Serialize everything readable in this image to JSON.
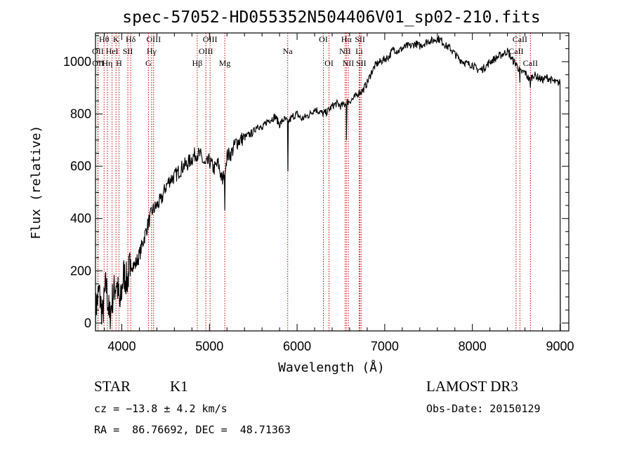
{
  "chart_data": {
    "type": "line",
    "title": "spec-57052-HD055352N504406V01_sp02-210.fits",
    "xlabel": "Wavelength (Å)",
    "ylabel": "Flux (relative)",
    "xlim": [
      3700,
      9100
    ],
    "ylim": [
      -30,
      1110
    ],
    "xticks": [
      4000,
      5000,
      6000,
      7000,
      8000,
      9000
    ],
    "yticks": [
      0,
      200,
      400,
      600,
      800,
      1000
    ],
    "grid": false,
    "series": [
      {
        "name": "flux",
        "x": [
          3700,
          3740,
          3780,
          3820,
          3860,
          3900,
          3940,
          3980,
          4020,
          4060,
          4100,
          4150,
          4200,
          4250,
          4300,
          4350,
          4400,
          4450,
          4500,
          4550,
          4600,
          4650,
          4700,
          4750,
          4800,
          4850,
          4900,
          4950,
          5000,
          5050,
          5100,
          5150,
          5200,
          5250,
          5300,
          5350,
          5400,
          5450,
          5500,
          5550,
          5600,
          5650,
          5700,
          5750,
          5800,
          5850,
          5900,
          5950,
          6000,
          6050,
          6100,
          6150,
          6200,
          6250,
          6300,
          6350,
          6400,
          6450,
          6500,
          6550,
          6600,
          6650,
          6700,
          6750,
          6800,
          6850,
          6900,
          6950,
          7000,
          7050,
          7100,
          7150,
          7200,
          7250,
          7300,
          7350,
          7400,
          7450,
          7500,
          7550,
          7600,
          7650,
          7700,
          7750,
          7800,
          7850,
          7900,
          7950,
          8000,
          8050,
          8100,
          8150,
          8200,
          8250,
          8300,
          8350,
          8400,
          8450,
          8500,
          8550,
          8600,
          8650,
          8700,
          8750,
          8800,
          8850,
          8900,
          8950,
          9000
        ],
        "y": [
          50,
          120,
          30,
          150,
          20,
          110,
          160,
          60,
          190,
          160,
          230,
          220,
          260,
          320,
          380,
          430,
          450,
          470,
          520,
          550,
          560,
          580,
          600,
          610,
          630,
          650,
          640,
          600,
          620,
          590,
          610,
          540,
          640,
          650,
          690,
          700,
          710,
          720,
          730,
          760,
          740,
          770,
          780,
          790,
          760,
          780,
          770,
          790,
          800,
          780,
          790,
          800,
          820,
          810,
          800,
          810,
          830,
          840,
          830,
          840,
          850,
          860,
          880,
          890,
          920,
          960,
          990,
          1000,
          1010,
          1020,
          1050,
          1040,
          1050,
          1060,
          1060,
          1070,
          1060,
          1070,
          1080,
          1080,
          1090,
          1080,
          1060,
          1050,
          1030,
          1010,
          1000,
          990,
          990,
          970,
          970,
          980,
          1000,
          1010,
          1020,
          1030,
          1040,
          1010,
          990,
          960,
          960,
          930,
          950,
          940,
          930,
          940,
          930,
          920,
          920
        ]
      }
    ],
    "absorption_features": [
      {
        "x": 3860,
        "y": 20
      },
      {
        "x": 4095,
        "y": 180
      },
      {
        "x": 5175,
        "y": 430
      },
      {
        "x": 5895,
        "y": 580
      },
      {
        "x": 6563,
        "y": 700
      },
      {
        "x": 8542,
        "y": 920
      },
      {
        "x": 8662,
        "y": 900
      }
    ],
    "spectral_lines": [
      {
        "label": "Hθ",
        "wavelength": 3798,
        "row": 1
      },
      {
        "label": "OII",
        "wavelength": 3727,
        "row": 2
      },
      {
        "label": "OII",
        "wavelength": 3729,
        "row": 3
      },
      {
        "label": "K",
        "wavelength": 3934,
        "row": 1
      },
      {
        "label": "HeI",
        "wavelength": 3889,
        "row": 2
      },
      {
        "label": "Hη",
        "wavelength": 3835,
        "row": 3
      },
      {
        "label": "Hδ",
        "wavelength": 4102,
        "row": 1
      },
      {
        "label": "SII",
        "wavelength": 4069,
        "row": 2
      },
      {
        "label": "H",
        "wavelength": 3968,
        "row": 3
      },
      {
        "label": "OIII",
        "wavelength": 4363,
        "row": 1
      },
      {
        "label": "Hγ",
        "wavelength": 4340,
        "row": 2
      },
      {
        "label": "G",
        "wavelength": 4304,
        "row": 3
      },
      {
        "label": "OIII",
        "wavelength": 5007,
        "row": 1
      },
      {
        "label": "OIII",
        "wavelength": 4959,
        "row": 2
      },
      {
        "label": "Hβ",
        "wavelength": 4861,
        "row": 3
      },
      {
        "label": "Mg",
        "wavelength": 5175,
        "row": 3
      },
      {
        "label": "Na",
        "wavelength": 5893,
        "row": 2
      },
      {
        "label": "OI",
        "wavelength": 6300,
        "row": 1
      },
      {
        "label": "OI",
        "wavelength": 6364,
        "row": 3
      },
      {
        "label": "Hα",
        "wavelength": 6563,
        "row": 1
      },
      {
        "label": "NII",
        "wavelength": 6548,
        "row": 2
      },
      {
        "label": "NII",
        "wavelength": 6584,
        "row": 3
      },
      {
        "label": "SII",
        "wavelength": 6717,
        "row": 1
      },
      {
        "label": "Li",
        "wavelength": 6708,
        "row": 2
      },
      {
        "label": "SII",
        "wavelength": 6731,
        "row": 3
      },
      {
        "label": "CaII",
        "wavelength": 8542,
        "row": 1
      },
      {
        "label": "CaII",
        "wavelength": 8498,
        "row": 2
      },
      {
        "label": "CaII",
        "wavelength": 8662,
        "row": 3
      }
    ]
  },
  "info": {
    "object_class": "STAR",
    "subclass": "K1",
    "survey": "LAMOST DR3",
    "redshift": "cz = −13.8 ± 4.2 km/s",
    "obs_date": "Obs-Date: 20150129",
    "coords": "RA =  86.76692, DEC =  48.71363"
  },
  "colors": {
    "spectrum": "#000000",
    "line_marker": "#cc0000"
  }
}
